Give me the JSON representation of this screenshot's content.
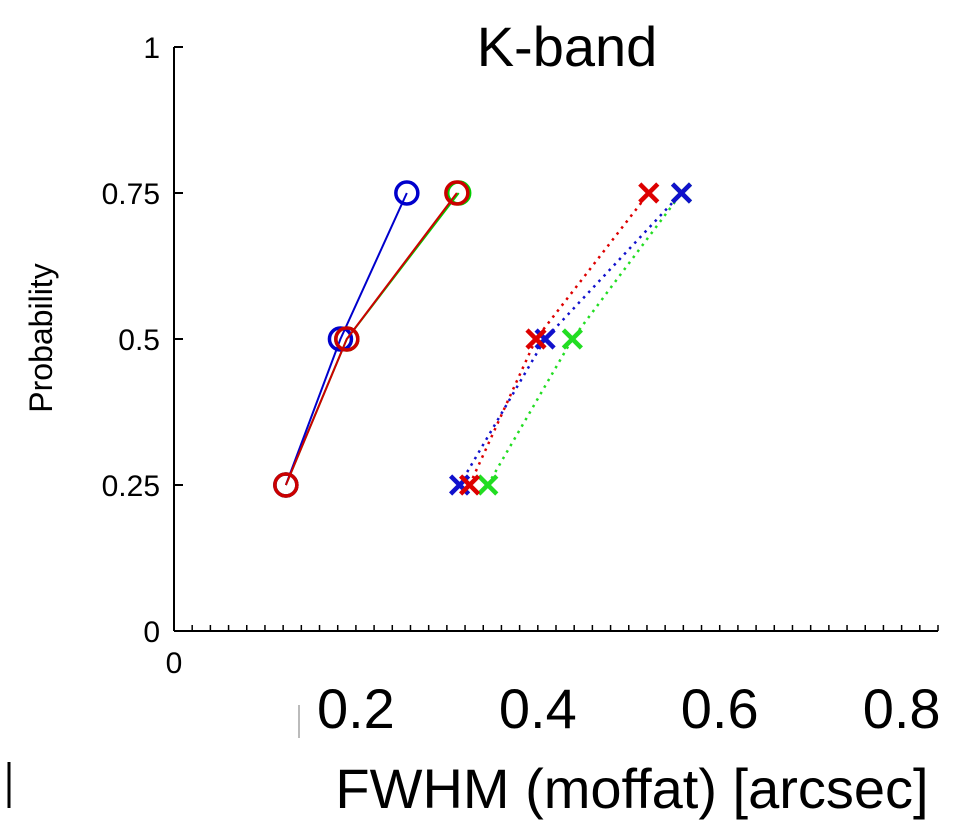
{
  "chart_data": {
    "type": "line",
    "title": "K-band",
    "xlabel": "FWHM (moffat) [arcsec]",
    "ylabel": "Probability",
    "xlim": [
      0,
      0.84
    ],
    "ylim": [
      0,
      1
    ],
    "x_ticks": [
      0,
      0.2,
      0.4,
      0.6,
      0.8
    ],
    "x_tick_labels": [
      "0",
      "0.2",
      "0.4",
      "0.6",
      "0.8"
    ],
    "y_ticks": [
      0,
      0.25,
      0.5,
      0.75,
      1
    ],
    "y_tick_labels": [
      "0",
      "0.25",
      "0.5",
      "0.75",
      "1"
    ],
    "grid": false,
    "series": [
      {
        "color": "#00cc00",
        "marker": "circle",
        "line": "solid",
        "x": [
          0.123,
          0.19,
          0.313
        ],
        "y": [
          0.25,
          0.5,
          0.75
        ]
      },
      {
        "color": "#0000cc",
        "marker": "circle",
        "line": "solid",
        "x": [
          0.123,
          0.183,
          0.256
        ],
        "y": [
          0.25,
          0.5,
          0.75
        ]
      },
      {
        "color": "#cc0000",
        "marker": "circle",
        "line": "solid",
        "x": [
          0.123,
          0.19,
          0.311
        ],
        "y": [
          0.25,
          0.5,
          0.75
        ]
      },
      {
        "color": "#22dd22",
        "marker": "x",
        "line": "dotted",
        "x": [
          0.345,
          0.438,
          0.558
        ],
        "y": [
          0.25,
          0.5,
          0.75
        ]
      },
      {
        "color": "#1111cc",
        "marker": "x",
        "line": "dotted",
        "x": [
          0.314,
          0.408,
          0.558
        ],
        "y": [
          0.25,
          0.5,
          0.75
        ]
      },
      {
        "color": "#dd0000",
        "marker": "x",
        "line": "dotted",
        "x": [
          0.325,
          0.398,
          0.522
        ],
        "y": [
          0.25,
          0.5,
          0.75
        ]
      }
    ]
  }
}
